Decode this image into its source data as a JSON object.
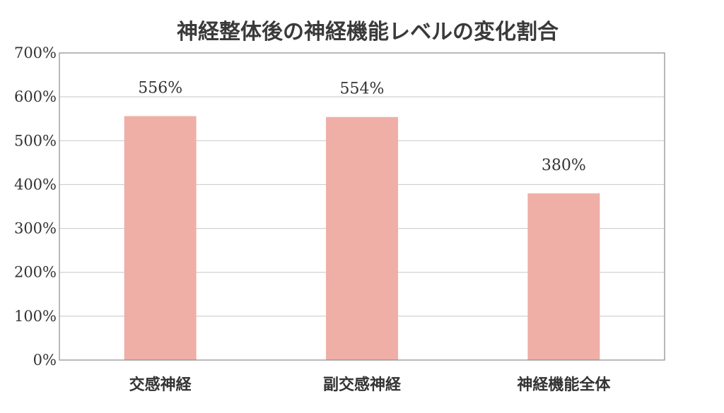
{
  "chart_data": {
    "type": "bar",
    "title": "神経整体後の神経機能レベルの変化割合",
    "xlabel": "",
    "ylabel": "",
    "categories": [
      "交感神経",
      "副交感神経",
      "神経機能全体"
    ],
    "values": [
      556,
      554,
      380
    ],
    "data_labels": [
      "556%",
      "554%",
      "380%"
    ],
    "ylim": [
      0,
      700
    ],
    "yticks": [
      0,
      100,
      200,
      300,
      400,
      500,
      600,
      700
    ],
    "ytick_labels": [
      "0%",
      "100%",
      "200%",
      "300%",
      "400%",
      "500%",
      "600%",
      "700%"
    ],
    "grid": true,
    "legend": "none",
    "bar_color": "#efafa7"
  }
}
